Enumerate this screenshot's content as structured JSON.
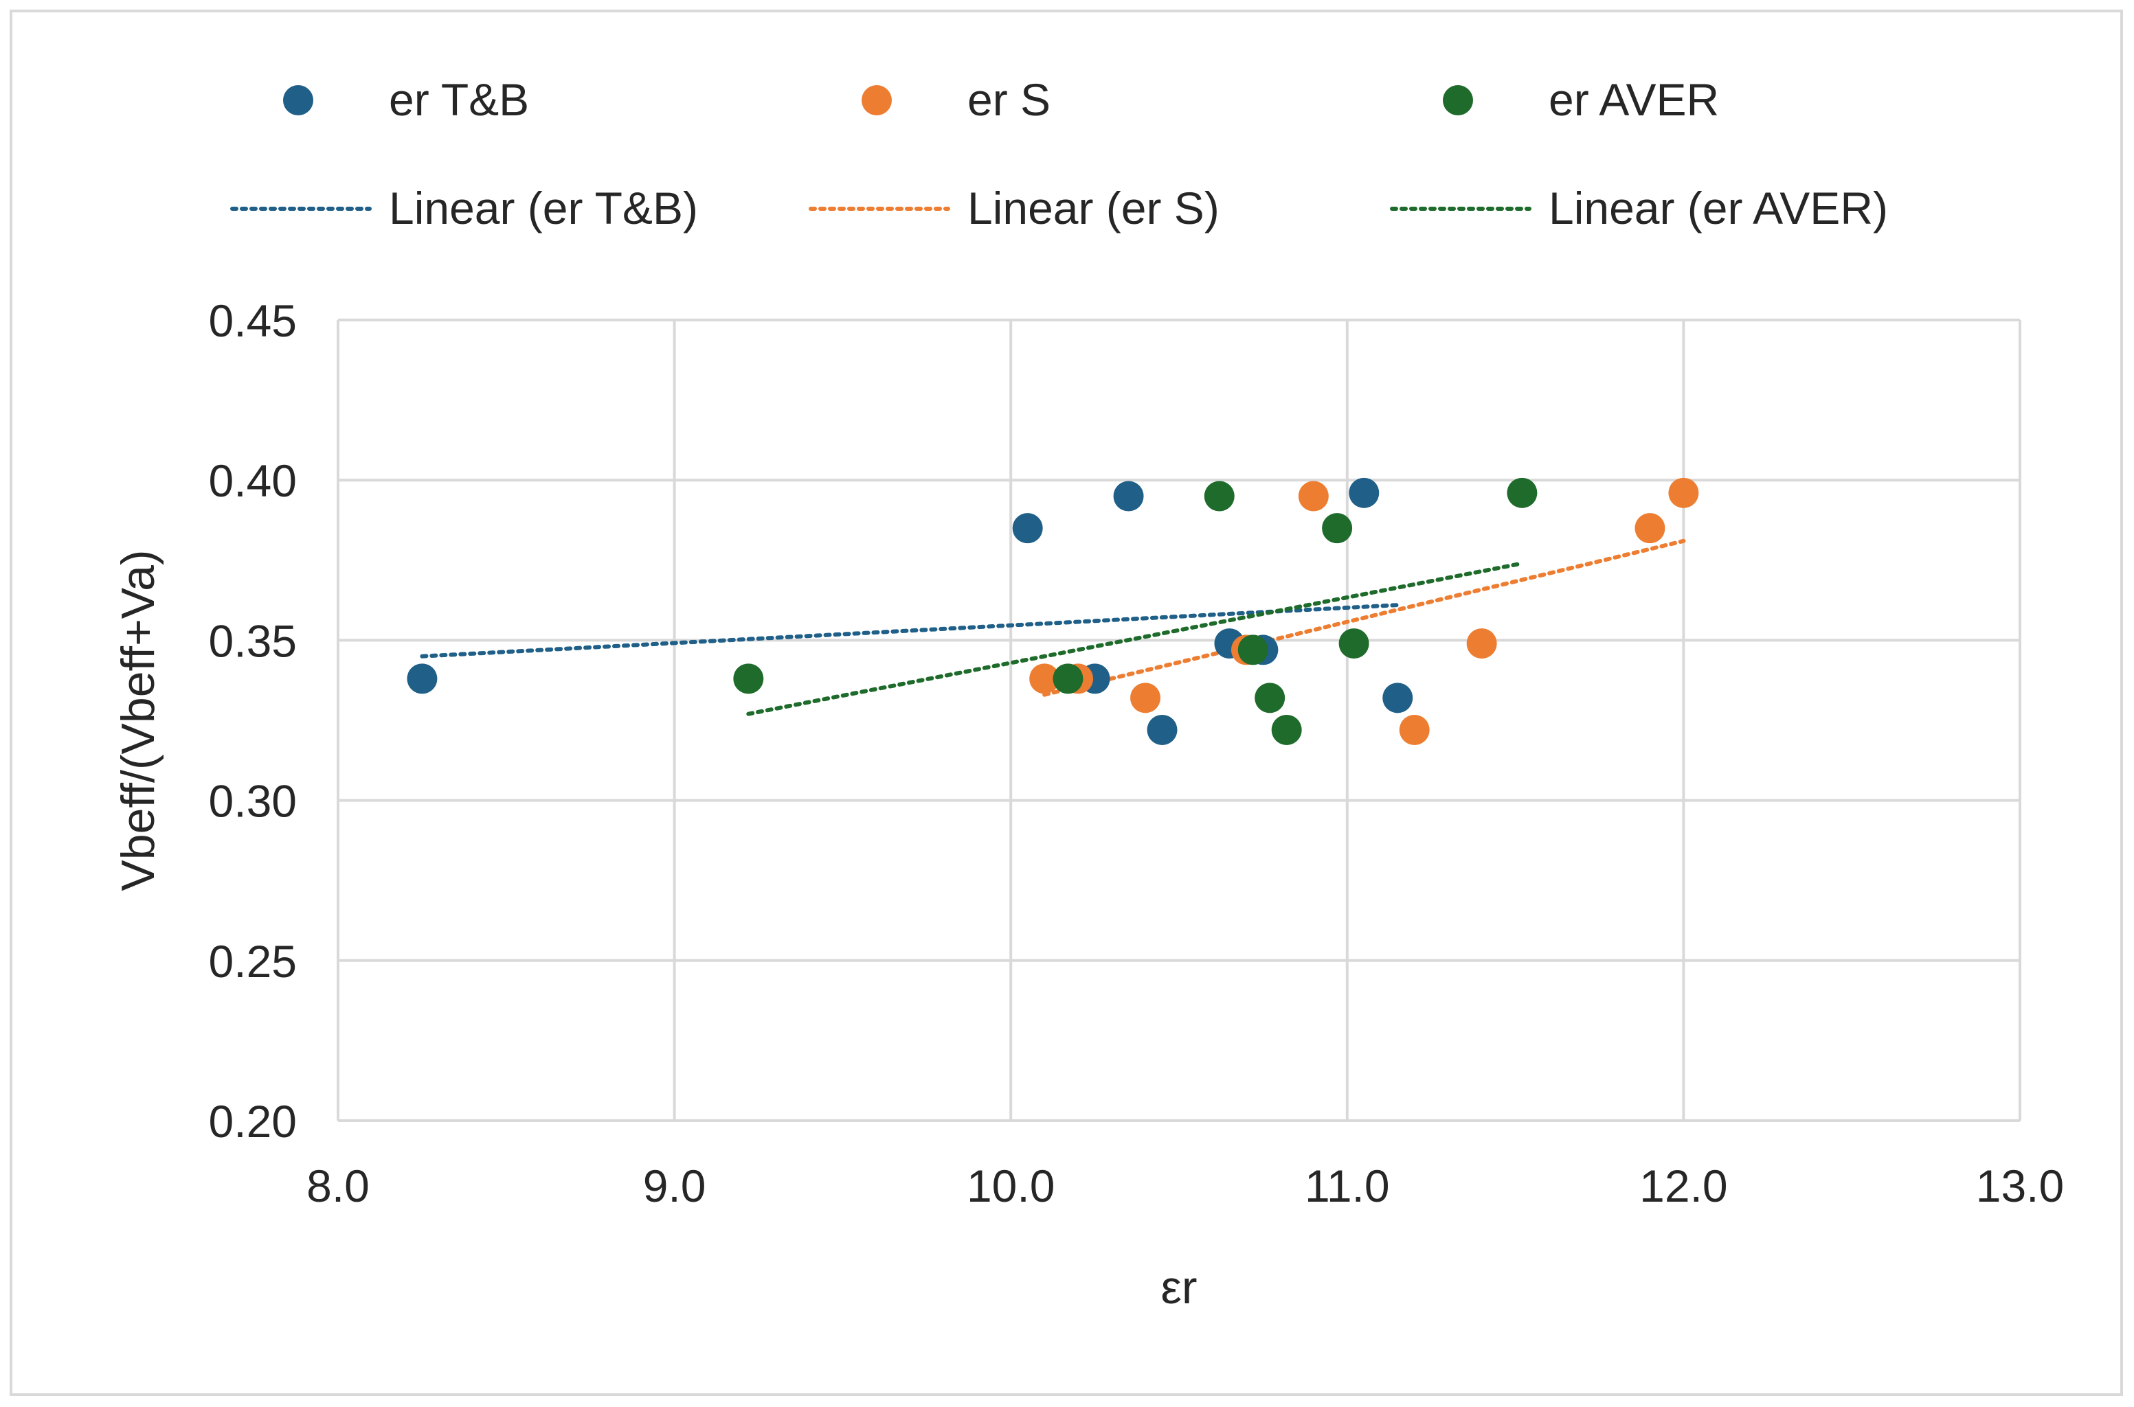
{
  "chart_data": {
    "type": "scatter",
    "title": "",
    "xlabel": "εr",
    "ylabel": "Vbeff/(Vbeff+Va)",
    "xlim": [
      8.0,
      13.0
    ],
    "ylim": [
      0.2,
      0.45
    ],
    "xticks": [
      8.0,
      9.0,
      10.0,
      11.0,
      12.0,
      13.0
    ],
    "yticks": [
      0.2,
      0.25,
      0.3,
      0.35,
      0.4,
      0.45
    ],
    "xtick_labels": [
      "8.0",
      "9.0",
      "10.0",
      "11.0",
      "12.0",
      "13.0"
    ],
    "ytick_labels": [
      "0.20",
      "0.25",
      "0.30",
      "0.35",
      "0.40",
      "0.45"
    ],
    "grid": true,
    "legend_position": "top",
    "series": [
      {
        "name": "er T&B",
        "color": "#1f5f88",
        "points": [
          {
            "x": 8.25,
            "y": 0.338
          },
          {
            "x": 10.05,
            "y": 0.385
          },
          {
            "x": 10.35,
            "y": 0.395
          },
          {
            "x": 11.05,
            "y": 0.396
          },
          {
            "x": 10.25,
            "y": 0.338
          },
          {
            "x": 10.45,
            "y": 0.322
          },
          {
            "x": 10.65,
            "y": 0.349
          },
          {
            "x": 10.75,
            "y": 0.347
          },
          {
            "x": 11.15,
            "y": 0.332
          }
        ],
        "trendline": {
          "label": "Linear (er T&B)",
          "x": [
            8.25,
            11.15
          ],
          "y": [
            0.345,
            0.361
          ]
        }
      },
      {
        "name": "er S",
        "color": "#ed7d31",
        "points": [
          {
            "x": 10.1,
            "y": 0.338
          },
          {
            "x": 10.2,
            "y": 0.338
          },
          {
            "x": 10.4,
            "y": 0.332
          },
          {
            "x": 10.7,
            "y": 0.347
          },
          {
            "x": 10.9,
            "y": 0.395
          },
          {
            "x": 11.2,
            "y": 0.322
          },
          {
            "x": 11.4,
            "y": 0.349
          },
          {
            "x": 11.9,
            "y": 0.385
          },
          {
            "x": 12.0,
            "y": 0.396
          }
        ],
        "trendline": {
          "label": "Linear (er S)",
          "x": [
            10.1,
            12.0
          ],
          "y": [
            0.333,
            0.381
          ]
        }
      },
      {
        "name": "er AVER",
        "color": "#1e6b2b",
        "points": [
          {
            "x": 9.22,
            "y": 0.338
          },
          {
            "x": 10.17,
            "y": 0.338
          },
          {
            "x": 10.62,
            "y": 0.395
          },
          {
            "x": 10.72,
            "y": 0.347
          },
          {
            "x": 10.77,
            "y": 0.332
          },
          {
            "x": 10.82,
            "y": 0.322
          },
          {
            "x": 10.97,
            "y": 0.385
          },
          {
            "x": 11.02,
            "y": 0.349
          },
          {
            "x": 11.52,
            "y": 0.396
          }
        ],
        "trendline": {
          "label": "Linear (er AVER)",
          "x": [
            9.22,
            11.52
          ],
          "y": [
            0.327,
            0.374
          ]
        }
      }
    ]
  }
}
